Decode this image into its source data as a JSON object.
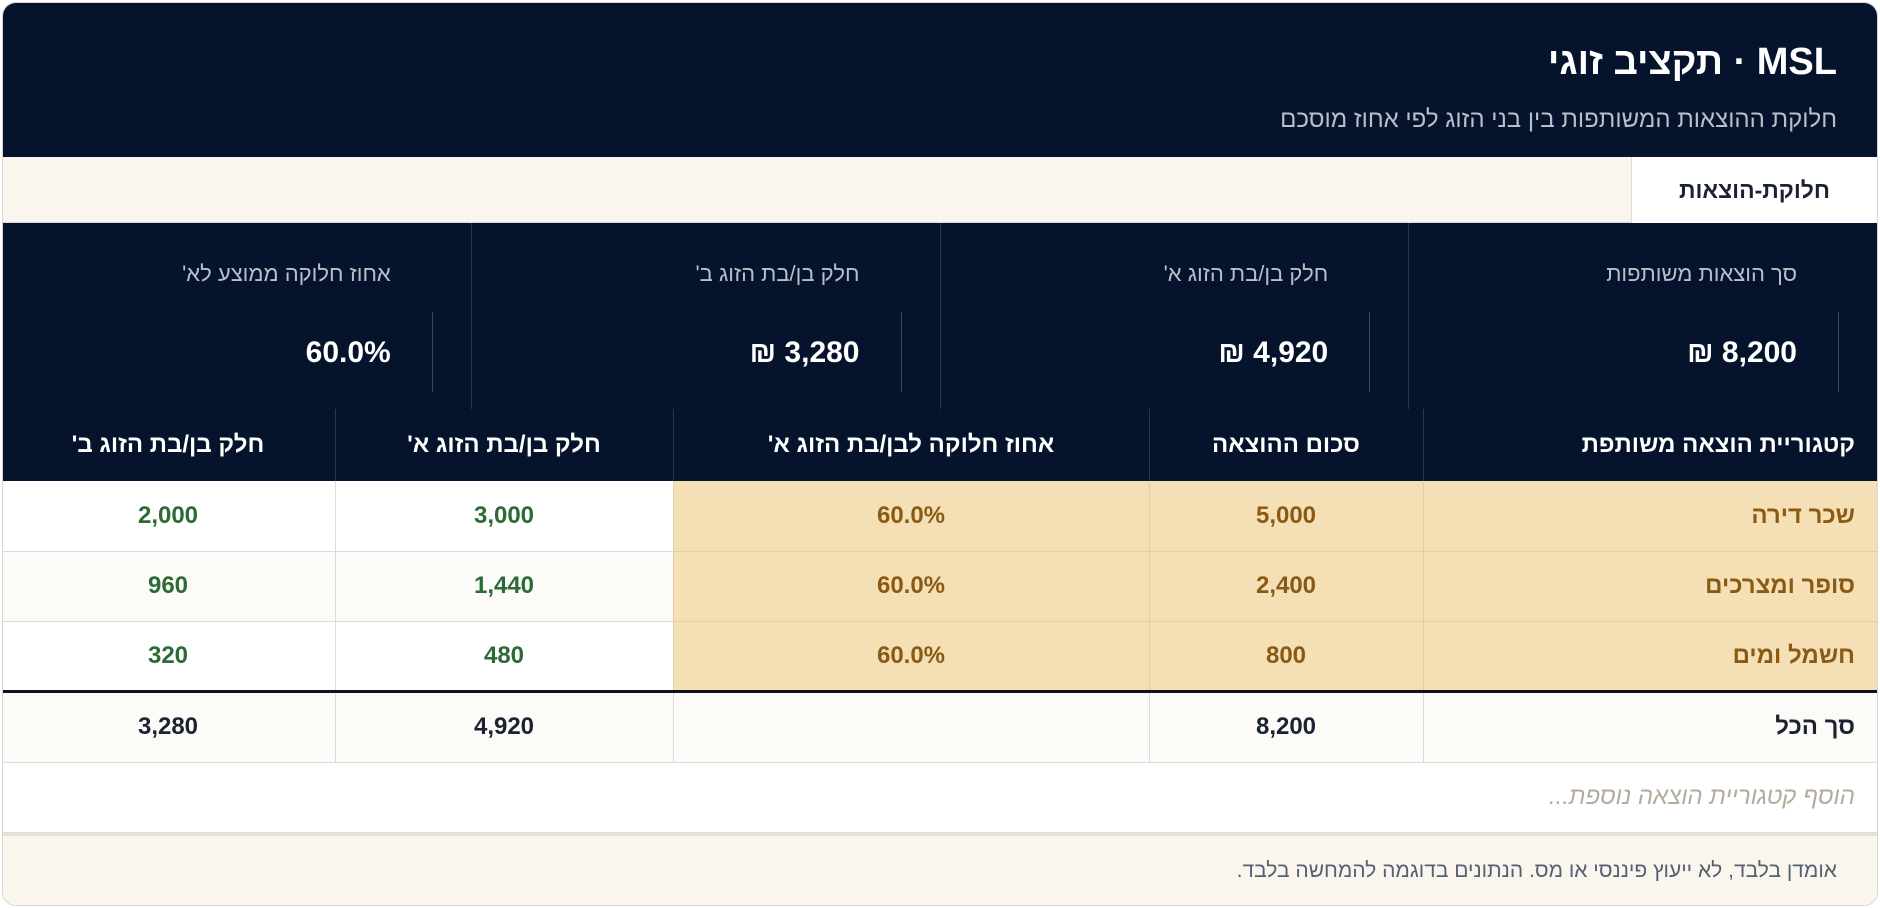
{
  "header": {
    "title": "MSL · תקציב זוגי",
    "subtitle": "חלוקת ההוצאות המשותפות בין בני הזוג לפי אחוז מוסכם"
  },
  "tabs": [
    {
      "label": "חלוקת-הוצאות",
      "active": true
    }
  ],
  "kpis": [
    {
      "label": "סך הוצאות משותפות",
      "value": "8,200 ₪"
    },
    {
      "label": "חלק בן/בת הזוג א'",
      "value": "4,920 ₪"
    },
    {
      "label": "חלק בן/בת הזוג ב'",
      "value": "3,280 ₪"
    },
    {
      "label": "אחוז חלוקה ממוצע לא'",
      "value": "60.0%"
    }
  ],
  "table": {
    "headers": [
      "קטגוריית הוצאה משותפת",
      "סכום ההוצאה",
      "אחוז חלוקה לבן/בת הזוג א'",
      "חלק בן/בת הזוג א'",
      "חלק בן/בת הזוג ב'"
    ],
    "rows": [
      [
        "שכר דירה",
        "5,000",
        "60.0%",
        "3,000",
        "2,000"
      ],
      [
        "סופר ומצרכים",
        "2,400",
        "60.0%",
        "1,440",
        "960"
      ],
      [
        "חשמל ומים",
        "800",
        "60.0%",
        "480",
        "320"
      ]
    ],
    "total": [
      "סך הכל",
      "8,200",
      "",
      "4,920",
      "3,280"
    ],
    "add_placeholder": "הוסף קטגוריית הוצאה נוספת..."
  },
  "footer": {
    "disclaimer": "אומדן בלבד, לא ייעוץ פיננסי או מס. הנתונים בדוגמה להמחשה בלבד."
  },
  "colors": {
    "navy": "#06132c",
    "input_cell": "#f5e0b5",
    "input_text": "#8a5a14",
    "calc_text": "#2c6b36"
  }
}
